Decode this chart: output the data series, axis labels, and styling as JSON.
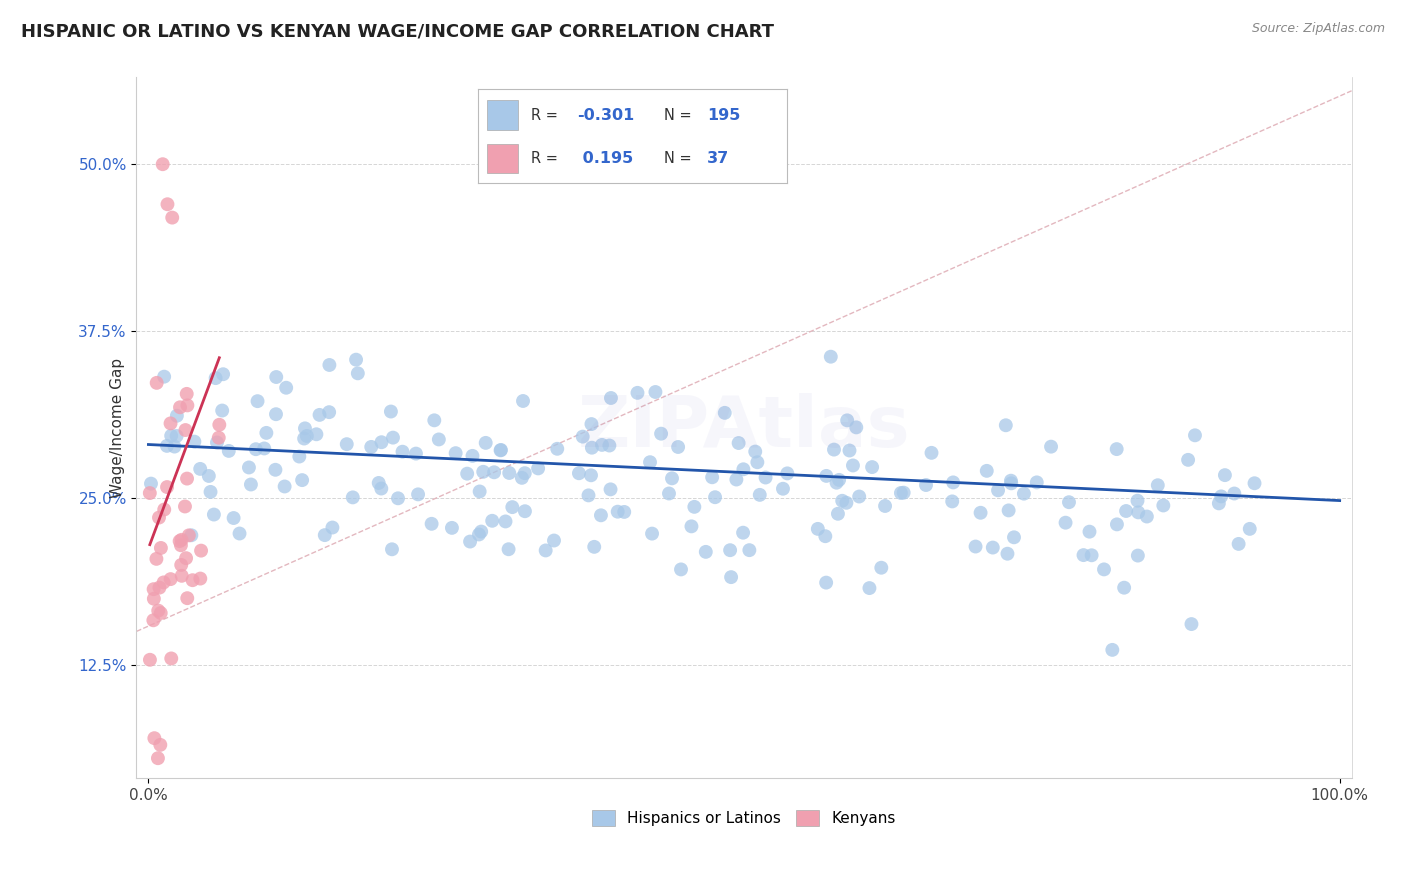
{
  "title": "HISPANIC OR LATINO VS KENYAN WAGE/INCOME GAP CORRELATION CHART",
  "source": "Source: ZipAtlas.com",
  "ylabel": "Wage/Income Gap",
  "y_tick_labels": [
    "12.5%",
    "25.0%",
    "37.5%",
    "50.0%"
  ],
  "y_tick_values": [
    0.125,
    0.25,
    0.375,
    0.5
  ],
  "xlim": [
    -0.01,
    1.01
  ],
  "ylim": [
    0.04,
    0.565
  ],
  "blue_color": "#a8c8e8",
  "pink_color": "#f0a0b0",
  "blue_line_color": "#2255aa",
  "pink_line_color": "#cc3355",
  "diag_line_color": "#e0b0b8",
  "R_blue": -0.301,
  "N_blue": 195,
  "R_pink": 0.195,
  "N_pink": 37,
  "background_color": "#ffffff",
  "grid_color": "#cccccc",
  "title_fontsize": 13,
  "axis_label_fontsize": 11,
  "tick_fontsize": 11,
  "legend_fontsize": 12,
  "watermark_text": "ZIPAtlas",
  "watermark_alpha": 0.07,
  "legend_text_color": "#333333",
  "legend_num_color": "#3366cc"
}
